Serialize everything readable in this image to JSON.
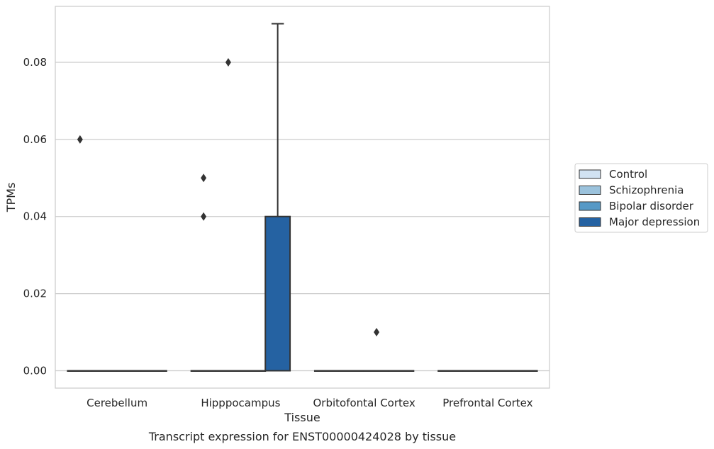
{
  "chart_data": {
    "type": "box",
    "title": "",
    "caption": "Transcript expression for ENST00000424028 by tissue",
    "xlabel": "Tissue",
    "ylabel": "TPMs",
    "ylim": [
      -0.0045,
      0.0945
    ],
    "yticks": [
      "0.00",
      "0.02",
      "0.04",
      "0.06",
      "0.08"
    ],
    "grid": true,
    "legend_position": "right",
    "categories": [
      "Cerebellum",
      "Hipppocampus",
      "Orbitofontal Cortex",
      "Prefrontal Cortex"
    ],
    "colors": {
      "Control": "#d1e2f2",
      "Schizophrenia": "#9bc2dc",
      "Bipolar disorder": "#5699c6",
      "Major depression": "#2562a2",
      "grid": "#cccccc",
      "line": "#333333",
      "axes_edge": "#cccccc"
    },
    "series": [
      {
        "name": "Control",
        "boxes": [
          {
            "category": "Cerebellum",
            "q1": 0,
            "median": 0,
            "q3": 0,
            "whisker_low": 0,
            "whisker_high": 0,
            "outliers": [
              0.06
            ]
          },
          {
            "category": "Hipppocampus",
            "q1": 0,
            "median": 0,
            "q3": 0,
            "whisker_low": 0,
            "whisker_high": 0,
            "outliers": [
              0.05,
              0.04
            ]
          },
          {
            "category": "Orbitofontal Cortex",
            "q1": 0,
            "median": 0,
            "q3": 0,
            "whisker_low": 0,
            "whisker_high": 0,
            "outliers": []
          },
          {
            "category": "Prefrontal Cortex",
            "q1": 0,
            "median": 0,
            "q3": 0,
            "whisker_low": 0,
            "whisker_high": 0,
            "outliers": []
          }
        ]
      },
      {
        "name": "Schizophrenia",
        "boxes": [
          {
            "category": "Cerebellum",
            "q1": 0,
            "median": 0,
            "q3": 0,
            "whisker_low": 0,
            "whisker_high": 0,
            "outliers": []
          },
          {
            "category": "Hipppocampus",
            "q1": 0,
            "median": 0,
            "q3": 0,
            "whisker_low": 0,
            "whisker_high": 0,
            "outliers": [
              0.08
            ]
          },
          {
            "category": "Orbitofontal Cortex",
            "q1": 0,
            "median": 0,
            "q3": 0,
            "whisker_low": 0,
            "whisker_high": 0,
            "outliers": []
          },
          {
            "category": "Prefrontal Cortex",
            "q1": 0,
            "median": 0,
            "q3": 0,
            "whisker_low": 0,
            "whisker_high": 0,
            "outliers": []
          }
        ]
      },
      {
        "name": "Bipolar disorder",
        "boxes": [
          {
            "category": "Cerebellum",
            "q1": 0,
            "median": 0,
            "q3": 0,
            "whisker_low": 0,
            "whisker_high": 0,
            "outliers": []
          },
          {
            "category": "Hipppocampus",
            "q1": 0,
            "median": 0,
            "q3": 0,
            "whisker_low": 0,
            "whisker_high": 0,
            "outliers": []
          },
          {
            "category": "Orbitofontal Cortex",
            "q1": 0,
            "median": 0,
            "q3": 0,
            "whisker_low": 0,
            "whisker_high": 0,
            "outliers": [
              0.01
            ]
          },
          {
            "category": "Prefrontal Cortex",
            "q1": 0,
            "median": 0,
            "q3": 0,
            "whisker_low": 0,
            "whisker_high": 0,
            "outliers": []
          }
        ]
      },
      {
        "name": "Major depression",
        "boxes": [
          {
            "category": "Cerebellum",
            "q1": 0,
            "median": 0,
            "q3": 0,
            "whisker_low": 0,
            "whisker_high": 0,
            "outliers": []
          },
          {
            "category": "Hipppocampus",
            "q1": 0,
            "median": 0,
            "q3": 0.04,
            "whisker_low": 0,
            "whisker_high": 0.09,
            "outliers": []
          },
          {
            "category": "Orbitofontal Cortex",
            "q1": 0,
            "median": 0,
            "q3": 0,
            "whisker_low": 0,
            "whisker_high": 0,
            "outliers": []
          },
          {
            "category": "Prefrontal Cortex",
            "q1": 0,
            "median": 0,
            "q3": 0,
            "whisker_low": 0,
            "whisker_high": 0,
            "outliers": []
          }
        ]
      }
    ]
  }
}
